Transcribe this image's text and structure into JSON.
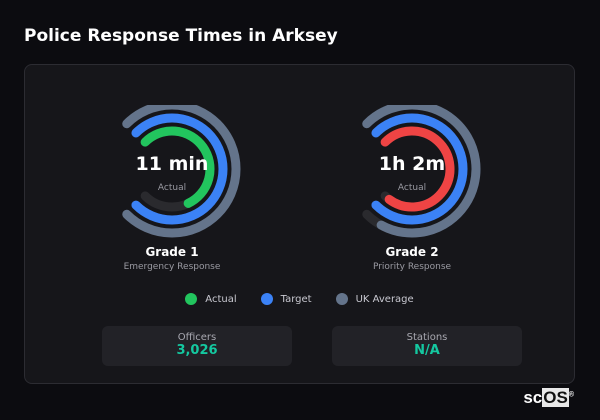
{
  "title": "Police Response Times in Arksey",
  "colors": {
    "actual_good": "#22c55e",
    "actual_bad": "#ef4444",
    "target": "#3b82f6",
    "uk_average": "#64748b",
    "track": "#2a2a2e",
    "stat_value": "#14c8a0"
  },
  "chart_data": {
    "type": "radial-bar",
    "legend": [
      "Actual",
      "Target",
      "UK Average"
    ],
    "legend_placement": "bottom",
    "gauges": [
      {
        "name": "Grade 1",
        "description": "Emergency Response",
        "value_label": "11 min",
        "value_sublabel": "Actual",
        "actual_color": "#22c55e",
        "fill": {
          "actual": 0.74,
          "target": 1.0,
          "uk_average": 1.0
        }
      },
      {
        "name": "Grade 2",
        "description": "Priority Response",
        "value_label": "1h 2m",
        "value_sublabel": "Actual",
        "actual_color": "#ef4444",
        "fill": {
          "actual": 0.97,
          "target": 1.0,
          "uk_average": 0.94
        }
      }
    ]
  },
  "stats": [
    {
      "label": "Officers",
      "value": "3,026"
    },
    {
      "label": "Stations",
      "value": "N/A"
    }
  ],
  "logo": "scOS"
}
